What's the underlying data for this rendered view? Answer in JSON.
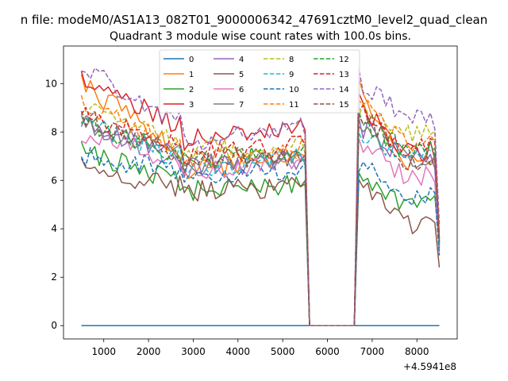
{
  "figure": {
    "suptitle": "n file: modeM0/AS1A13_082T01_9000006342_47691cztM0_level2_quad_clean",
    "offset_label": "+4.5941e8"
  },
  "chart_data": {
    "type": "line",
    "title": "Quadrant 3 module wise count rates with 100.0s bins.",
    "xlabel": "",
    "ylabel": "",
    "x_offset": 459410000,
    "xlim": [
      100,
      8900
    ],
    "ylim": [
      -0.55,
      11.55
    ],
    "x_ticks": [
      1000,
      2000,
      3000,
      4000,
      5000,
      6000,
      7000,
      8000
    ],
    "y_ticks": [
      0,
      2,
      4,
      6,
      8,
      10
    ],
    "grid": false,
    "legend_position": "top-center",
    "legend_columns": 4,
    "gap": [
      5600,
      6600
    ],
    "x": [
      500,
      600,
      700,
      800,
      900,
      1000,
      1100,
      1200,
      1300,
      1400,
      1500,
      1600,
      1700,
      1800,
      1900,
      2000,
      2100,
      2200,
      2300,
      2400,
      2500,
      2600,
      2700,
      2800,
      2900,
      3000,
      3100,
      3200,
      3300,
      3400,
      3500,
      3600,
      3700,
      3800,
      3900,
      4000,
      4100,
      4200,
      4300,
      4400,
      4500,
      4600,
      4700,
      4800,
      4900,
      5000,
      5100,
      5200,
      5300,
      5400,
      5500,
      5600,
      6600,
      6700,
      6800,
      6900,
      7000,
      7100,
      7200,
      7300,
      7400,
      7500,
      7600,
      7700,
      7800,
      7900,
      8000,
      8100,
      8200,
      8300,
      8400,
      8500
    ],
    "series": [
      {
        "name": "0",
        "color": "#1f77b4",
        "dash": "solid",
        "seed": 0,
        "start": 0.0,
        "end": 0.0,
        "end2": 0.0,
        "peak": 0.0,
        "tail": 0.0
      },
      {
        "name": "1",
        "color": "#ff7f0e",
        "dash": "solid",
        "seed": 1,
        "start": 10.0,
        "end": 7.3,
        "end2": 6.8,
        "peak": 9.8,
        "tail": 3.6
      },
      {
        "name": "2",
        "color": "#2ca02c",
        "dash": "solid",
        "seed": 2,
        "start": 7.2,
        "end": 6.0,
        "end2": 5.0,
        "peak": 6.3,
        "tail": 3.4
      },
      {
        "name": "3",
        "color": "#d62728",
        "dash": "solid",
        "seed": 3,
        "start": 10.2,
        "end": 8.3,
        "end2": 7.2,
        "peak": 9.2,
        "tail": 3.5
      },
      {
        "name": "4",
        "color": "#9467bd",
        "dash": "solid",
        "seed": 4,
        "start": 8.5,
        "end": 7.0,
        "end2": 6.8,
        "peak": 8.3,
        "tail": 3.3
      },
      {
        "name": "5",
        "color": "#8c564b",
        "dash": "solid",
        "seed": 5,
        "start": 6.5,
        "end": 5.8,
        "end2": 4.2,
        "peak": 5.8,
        "tail": 2.4
      },
      {
        "name": "6",
        "color": "#e377c2",
        "dash": "solid",
        "seed": 6,
        "start": 8.0,
        "end": 6.8,
        "end2": 6.2,
        "peak": 7.5,
        "tail": 3.0
      },
      {
        "name": "7",
        "color": "#7f7f7f",
        "dash": "solid",
        "seed": 7,
        "start": 8.4,
        "end": 7.1,
        "end2": 6.9,
        "peak": 8.2,
        "tail": 3.2
      },
      {
        "name": "8",
        "color": "#bcbd22",
        "dash": "dashed",
        "seed": 8,
        "start": 9.0,
        "end": 7.6,
        "end2": 7.9,
        "peak": 9.0,
        "tail": 3.8
      },
      {
        "name": "9",
        "color": "#17becf",
        "dash": "dashed",
        "seed": 9,
        "start": 8.4,
        "end": 7.0,
        "end2": 6.9,
        "peak": 8.0,
        "tail": 3.4
      },
      {
        "name": "10",
        "color": "#1f77b4",
        "dash": "dashed",
        "seed": 10,
        "start": 7.0,
        "end": 6.4,
        "end2": 5.4,
        "peak": 6.7,
        "tail": 2.9
      },
      {
        "name": "11",
        "color": "#ff7f0e",
        "dash": "dashed",
        "seed": 11,
        "start": 9.2,
        "end": 7.4,
        "end2": 7.6,
        "peak": 9.4,
        "tail": 3.7
      },
      {
        "name": "12",
        "color": "#2ca02c",
        "dash": "dashed",
        "seed": 12,
        "start": 8.2,
        "end": 7.2,
        "end2": 7.2,
        "peak": 8.5,
        "tail": 3.4
      },
      {
        "name": "13",
        "color": "#d62728",
        "dash": "dashed",
        "seed": 13,
        "start": 8.7,
        "end": 7.5,
        "end2": 7.3,
        "peak": 9.0,
        "tail": 3.6
      },
      {
        "name": "14",
        "color": "#9467bd",
        "dash": "dashed",
        "seed": 14,
        "start": 10.8,
        "end": 8.4,
        "end2": 8.5,
        "peak": 10.2,
        "tail": 4.2
      },
      {
        "name": "15",
        "color": "#8c564b",
        "dash": "dashed",
        "seed": 15,
        "start": 8.6,
        "end": 7.2,
        "end2": 6.8,
        "peak": 8.9,
        "tail": 3.5
      }
    ]
  }
}
